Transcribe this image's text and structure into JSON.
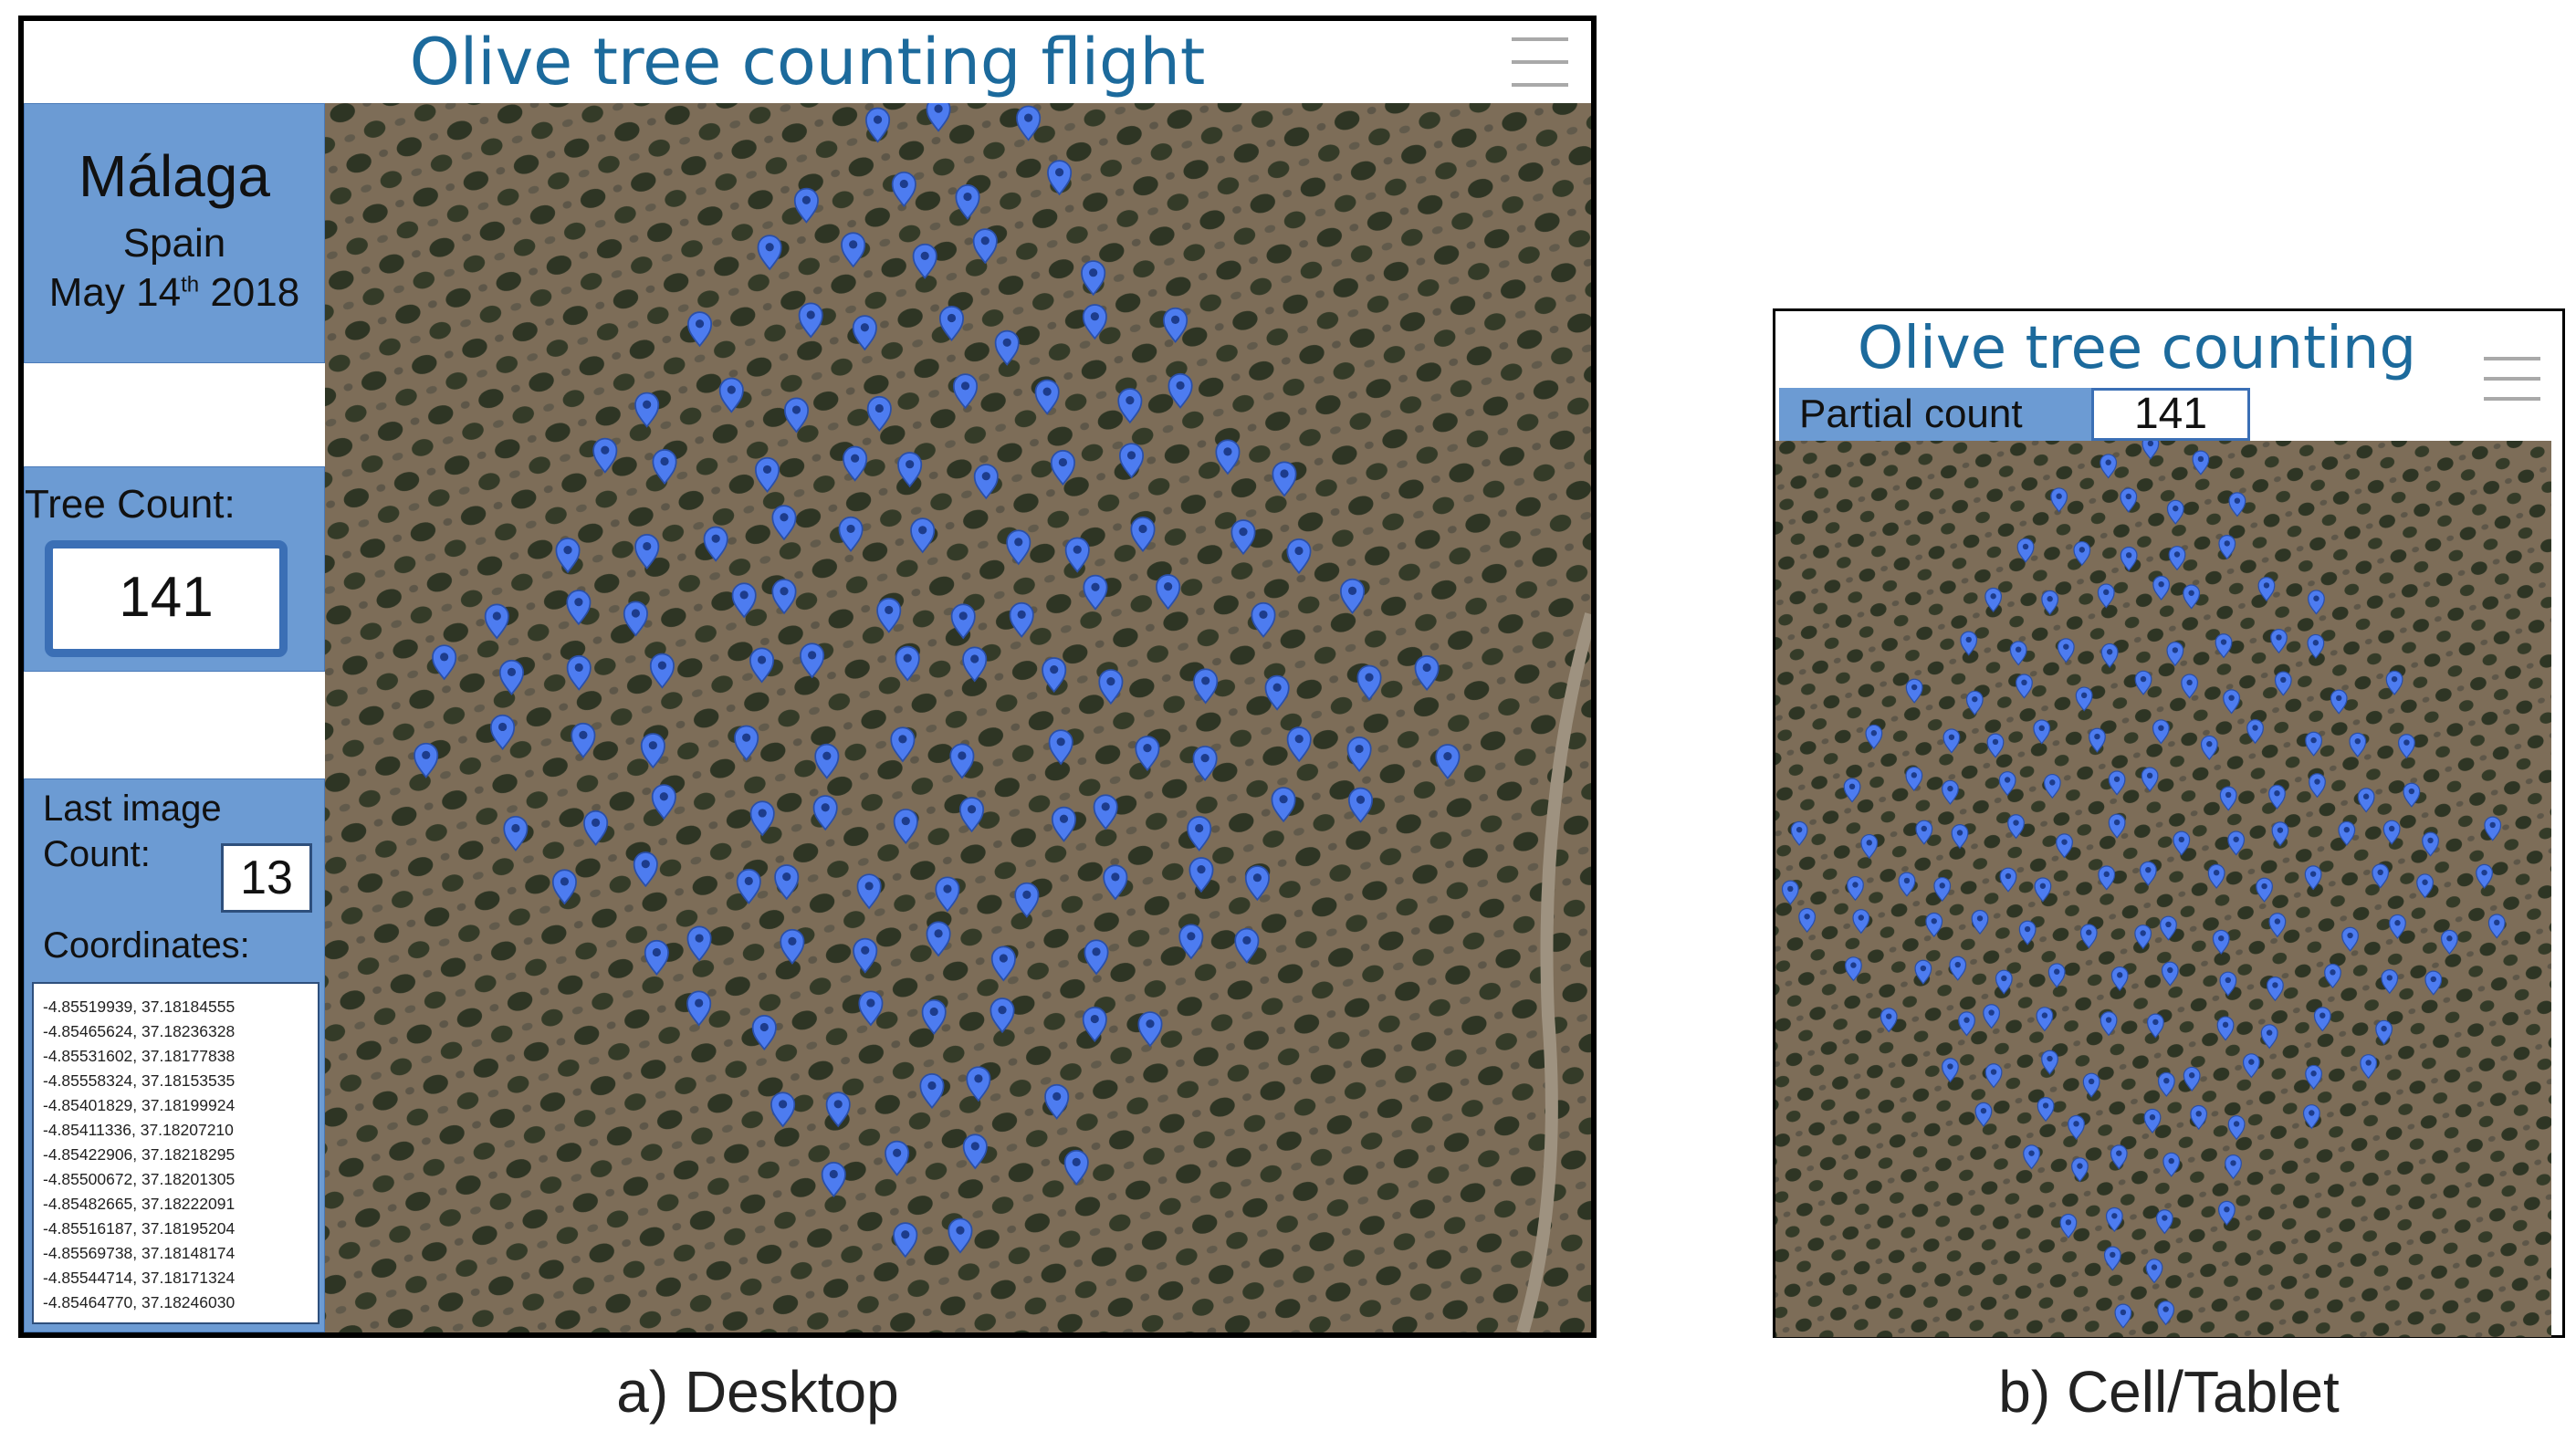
{
  "desktop": {
    "title": "Olive tree counting flight",
    "location": {
      "city": "Málaga",
      "country": "Spain",
      "date_prefix": "May 14",
      "date_sup": "th",
      "date_suffix": " 2018"
    },
    "tree_count_label": "Tree Count:",
    "tree_count": "141",
    "last_image_label": "Last image",
    "count_label": "Count:",
    "last_image_count": "13",
    "coordinates_label": "Coordinates:",
    "coordinates": [
      "-4.85519939, 37.18184555",
      "-4.85465624, 37.18236328",
      "-4.85531602, 37.18177838",
      "-4.85558324, 37.18153535",
      "-4.85401829, 37.18199924",
      "-4.85411336, 37.18207210",
      "-4.85422906, 37.18218295",
      "-4.85500672, 37.18201305",
      "-4.85482665, 37.18222091",
      "-4.85516187, 37.18195204",
      "-4.85569738, 37.18148174",
      "-4.85544714, 37.18171324",
      "-4.85464770, 37.18246030"
    ]
  },
  "mobile": {
    "title": "Olive tree counting",
    "partial_count_label": "Partial count",
    "partial_count": "141"
  },
  "captions": {
    "desktop": "a) Desktop",
    "mobile": "b) Cell/Tablet"
  },
  "colors": {
    "title": "#1c6a9c",
    "panel": "#6c9bd3",
    "marker": "#4d7cf0",
    "field": "#7a6a56"
  },
  "icons": {
    "menu": "hamburger-menu-icon",
    "tree_marker": "map-pin-icon"
  }
}
